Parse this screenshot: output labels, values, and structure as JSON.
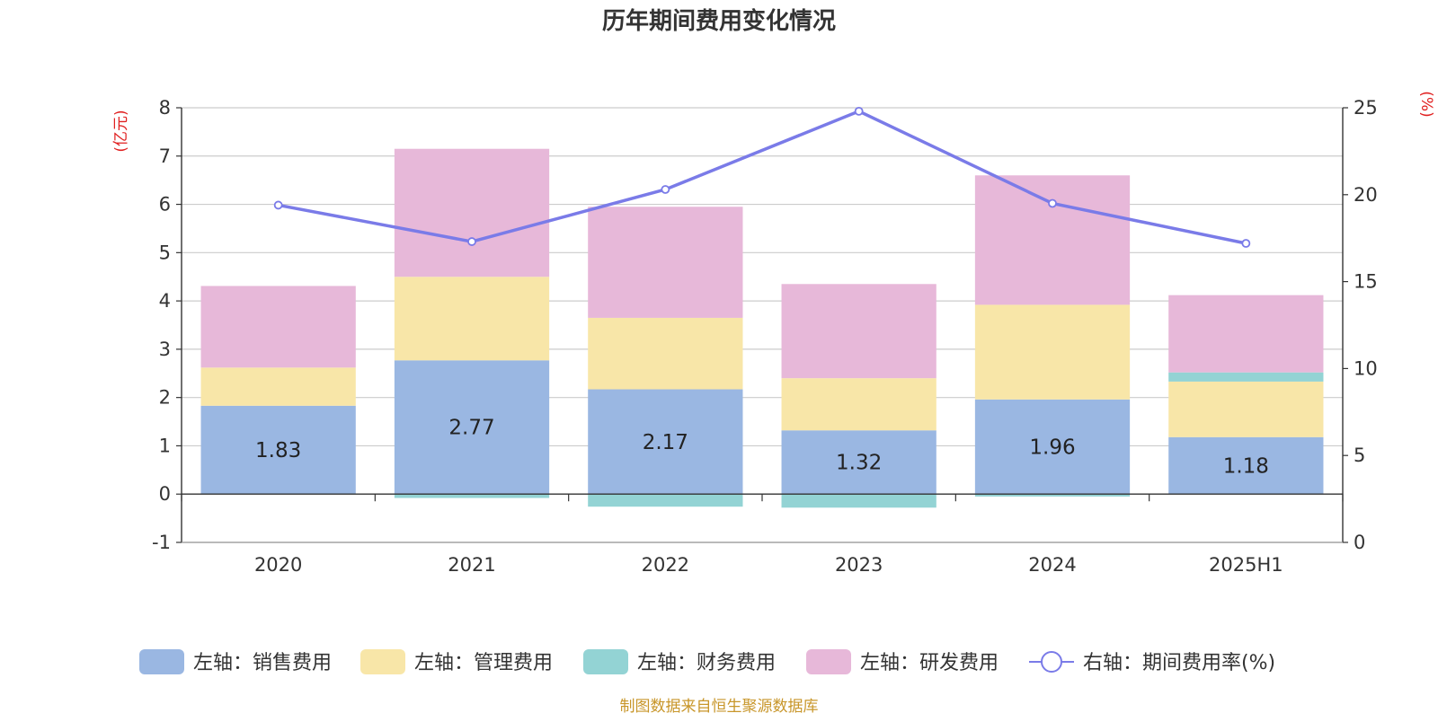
{
  "chart_data": {
    "type": "bar",
    "title": "历年期间费用变化情况",
    "categories": [
      "2020",
      "2021",
      "2022",
      "2023",
      "2024",
      "2025H1"
    ],
    "stacked": true,
    "y_left": {
      "label": "(亿元)",
      "ylim": [
        -1,
        8
      ],
      "ticks": [
        -1,
        0,
        1,
        2,
        3,
        4,
        5,
        6,
        7,
        8
      ]
    },
    "y_right": {
      "label": "(%)",
      "ylim": [
        0,
        25
      ],
      "ticks": [
        0,
        5,
        10,
        15,
        20,
        25
      ]
    },
    "grid": true,
    "legend_position": "bottom",
    "series": [
      {
        "name": "左轴：销售费用",
        "axis": "left",
        "type": "bar",
        "color": "#9ab7e2",
        "values": [
          1.83,
          2.77,
          2.17,
          1.32,
          1.96,
          1.18
        ],
        "data_labels": [
          "1.83",
          "2.77",
          "2.17",
          "1.32",
          "1.96",
          "1.18"
        ]
      },
      {
        "name": "左轴：管理费用",
        "axis": "left",
        "type": "bar",
        "color": "#f8e6a8",
        "values": [
          0.79,
          1.73,
          1.48,
          1.08,
          1.96,
          1.15
        ]
      },
      {
        "name": "左轴：财务费用",
        "axis": "left",
        "type": "bar",
        "color": "#93d3d4",
        "values": [
          0.0,
          -0.08,
          -0.26,
          -0.28,
          -0.05,
          0.19
        ]
      },
      {
        "name": "左轴：研发费用",
        "axis": "left",
        "type": "bar",
        "color": "#e7b8d9",
        "values": [
          1.69,
          2.65,
          2.3,
          1.95,
          2.68,
          1.6
        ]
      },
      {
        "name": "右轴：期间费用率(%)",
        "axis": "right",
        "type": "line",
        "color": "#7a7be8",
        "values": [
          19.4,
          17.3,
          20.3,
          24.8,
          19.5,
          17.2
        ]
      }
    ],
    "source_note": "制图数据来自恒生聚源数据库"
  }
}
